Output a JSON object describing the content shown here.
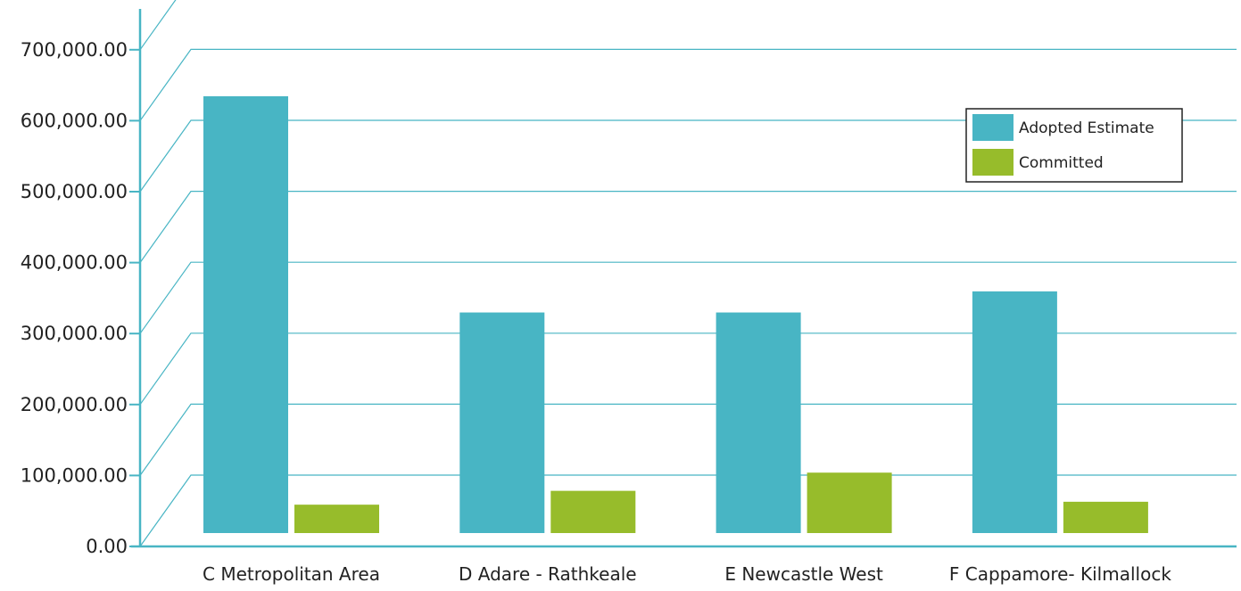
{
  "chart_data": {
    "type": "bar",
    "categories": [
      "C Metropolitan Area",
      "D Adare - Rathkeale",
      "E Newcastle West",
      "F Cappamore- Kilmallock"
    ],
    "series": [
      {
        "name": "Adopted Estimate",
        "color": "#48b5c4",
        "values": [
          600000,
          303000,
          303000,
          332000
        ]
      },
      {
        "name": "Committed",
        "color": "#97bc2b",
        "values": [
          39000,
          58000,
          83000,
          43000
        ]
      }
    ],
    "yticks": [
      "0.00",
      "100,000.00",
      "200,000.00",
      "300,000.00",
      "400,000.00",
      "500,000.00",
      "600,000.00",
      "700,000.00"
    ],
    "ylim": [
      0,
      700000
    ],
    "grid": true,
    "legend_position": "top-right",
    "axis_color": "#48b5c4",
    "style": "3d-perspective"
  }
}
